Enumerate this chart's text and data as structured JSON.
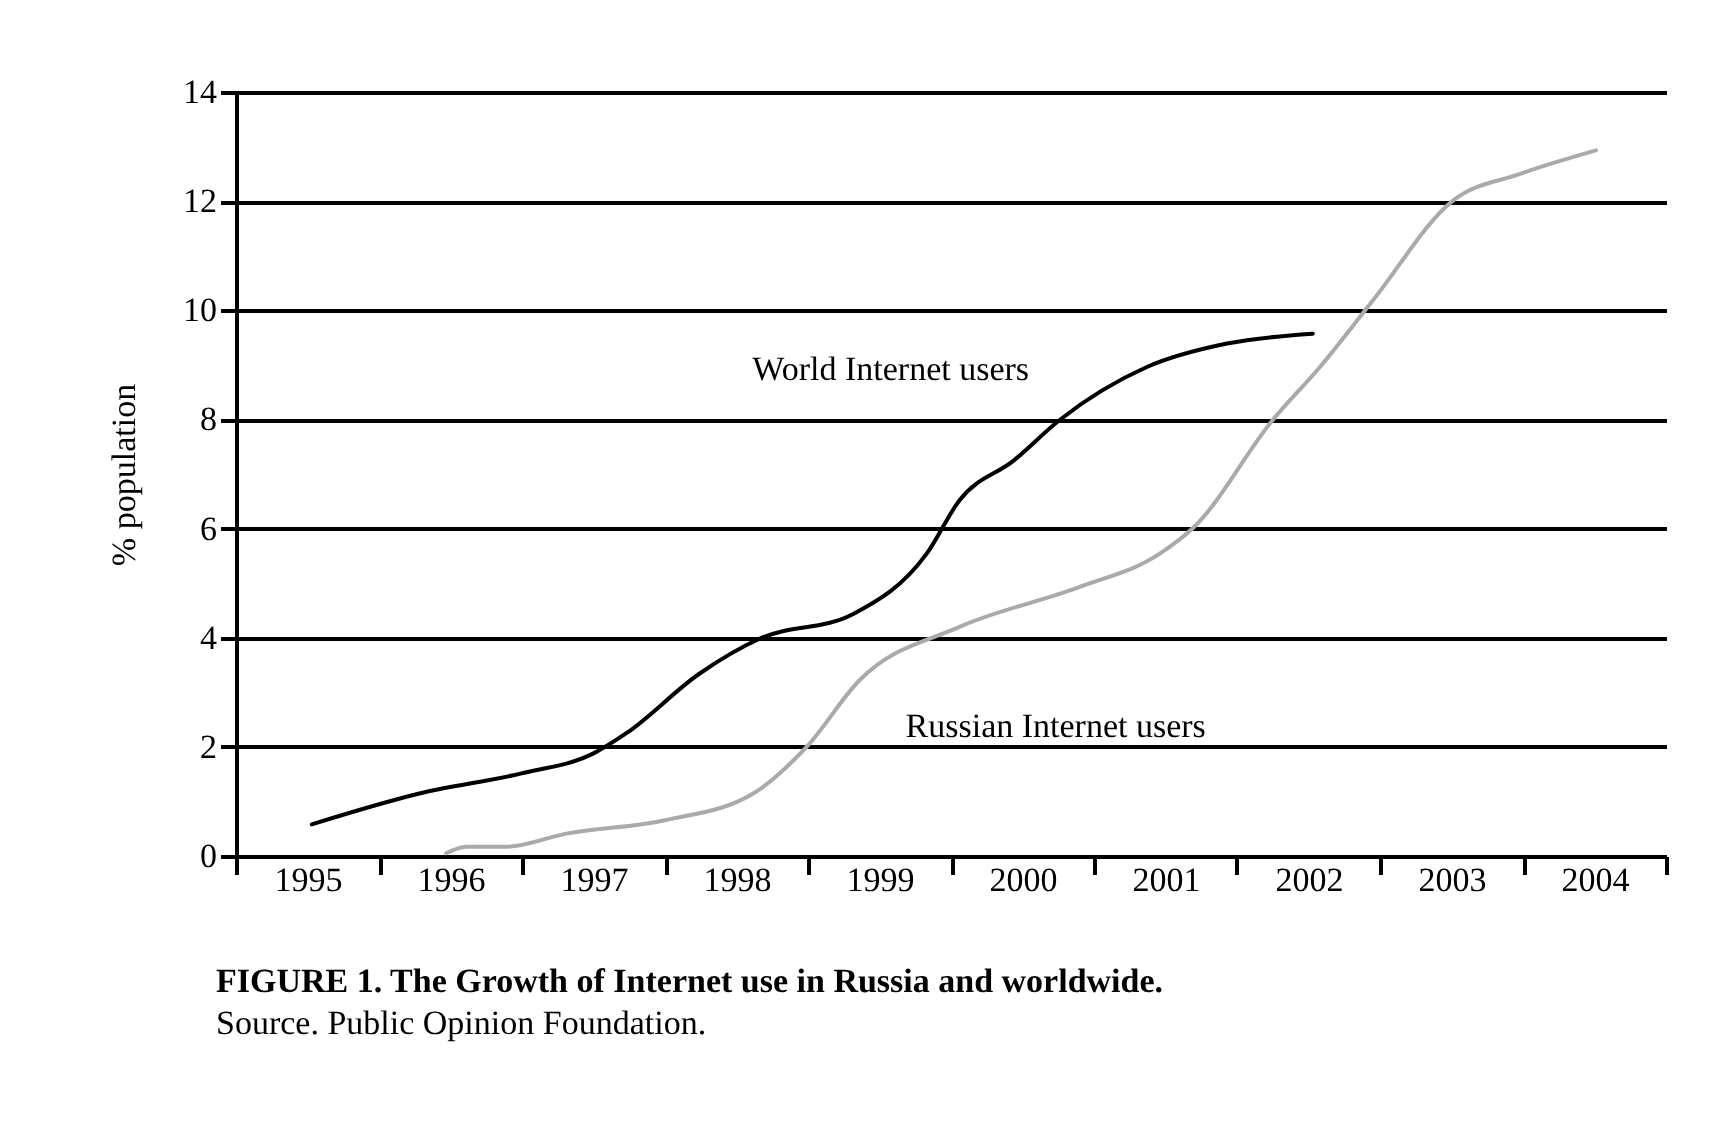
{
  "chart_data": {
    "type": "line",
    "title": "FIGURE 1. The Growth of Internet use in Russia and worldwide.",
    "ylabel": "% population",
    "annotations": [
      "Source. Public Opinion Foundation."
    ],
    "xlim": [
      1994.5,
      2004.5
    ],
    "xticks": [
      {
        "value": 1994.5,
        "label": null
      },
      {
        "value": 1995,
        "label": "1995"
      },
      {
        "value": 1995.5,
        "label": null
      },
      {
        "value": 1996,
        "label": "1996"
      },
      {
        "value": 1996.5,
        "label": null
      },
      {
        "value": 1997,
        "label": "1997"
      },
      {
        "value": 1997.5,
        "label": null
      },
      {
        "value": 1998,
        "label": "1998"
      },
      {
        "value": 1998.5,
        "label": null
      },
      {
        "value": 1999,
        "label": "1999"
      },
      {
        "value": 1999.5,
        "label": null
      },
      {
        "value": 2000,
        "label": "2000"
      },
      {
        "value": 2000.5,
        "label": null
      },
      {
        "value": 2001,
        "label": "2001"
      },
      {
        "value": 2001.5,
        "label": null
      },
      {
        "value": 2002,
        "label": "2002"
      },
      {
        "value": 2002.5,
        "label": null
      },
      {
        "value": 2003,
        "label": "2003"
      },
      {
        "value": 2003.5,
        "label": null
      },
      {
        "value": 2004,
        "label": "2004"
      },
      {
        "value": 2004.5,
        "label": null
      }
    ],
    "ylim": [
      0,
      14
    ],
    "yticks": [
      0,
      2,
      4,
      6,
      8,
      10,
      12,
      14
    ],
    "grid": "y",
    "line_style": "solid",
    "series": [
      {
        "name": "World Internet users",
        "color": "#000000",
        "x": [
          1995.03,
          1995.79,
          1996.49,
          1997.0,
          1997.23,
          1997.74,
          1998.16,
          1998.82,
          1999.33,
          1999.56,
          1999.94,
          2000.26,
          2000.87,
          2001.43,
          2002.03
        ],
        "values": [
          0.58,
          1.15,
          1.51,
          1.88,
          2.25,
          3.34,
          3.98,
          4.44,
          5.54,
          6.52,
          7.25,
          7.99,
          8.96,
          9.39,
          9.57
        ]
      },
      {
        "name": "Russian Internet users",
        "color": "#aaaaaa",
        "x": [
          1995.97,
          1996.11,
          1996.39,
          1996.81,
          1997.51,
          1998.12,
          1998.49,
          1998.86,
          1999.56,
          2000.4,
          2000.96,
          2001.2,
          2001.75,
          2002.08,
          2002.45,
          2003.01,
          2003.48,
          2004.01
        ],
        "values": [
          0.05,
          0.17,
          0.17,
          0.41,
          0.66,
          1.15,
          2.0,
          3.22,
          4.2,
          4.93,
          5.54,
          6.03,
          7.99,
          8.96,
          10.18,
          12.01,
          12.5,
          12.93
        ]
      }
    ]
  }
}
